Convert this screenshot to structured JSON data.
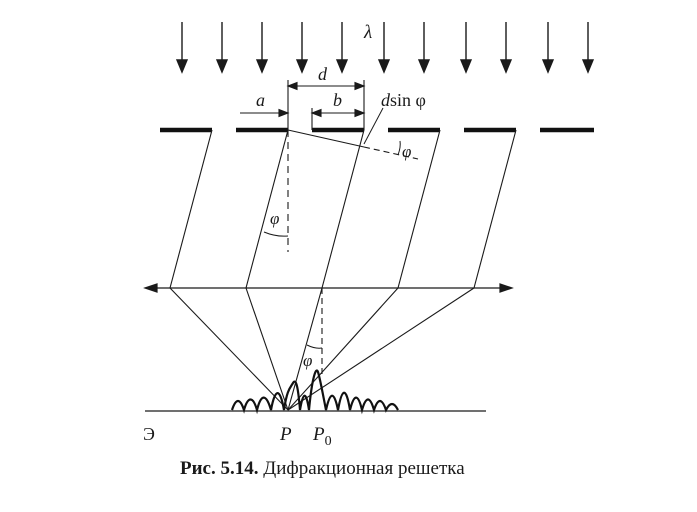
{
  "labels": {
    "lambda": "λ",
    "a": "a",
    "b": "b",
    "d": "d",
    "dsin_d": "d",
    "dsin_rest": "sin φ",
    "phi_top": "φ",
    "phi_mid": "φ",
    "phi_low": "φ",
    "screen": "Э",
    "P": "P",
    "P0": "P",
    "P0_sub": "0"
  },
  "caption": {
    "number": "Рис. 5.14.",
    "text": " Дифракционная решетка"
  }
}
